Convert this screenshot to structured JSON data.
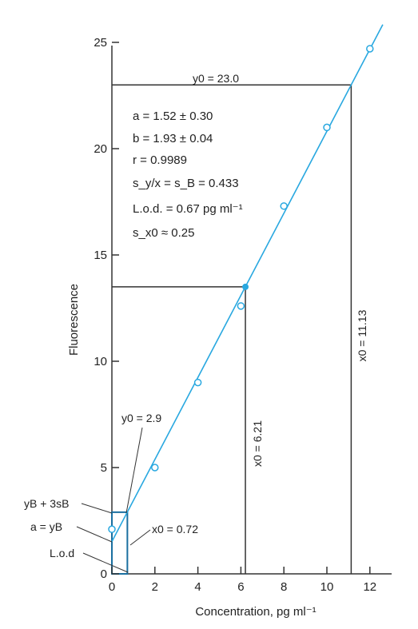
{
  "chart_data": {
    "type": "scatter",
    "xlabel": "Concentration, pg ml⁻¹",
    "ylabel": "Fluorescence",
    "xlim": [
      0,
      13
    ],
    "ylim": [
      0,
      25
    ],
    "x_ticks": [
      "0",
      "2",
      "4",
      "6",
      "8",
      "10",
      "12"
    ],
    "y_ticks": [
      "0",
      "5",
      "10",
      "15",
      "20",
      "25"
    ],
    "series": [
      {
        "x": [
          0,
          2,
          4,
          6,
          8,
          10,
          12
        ],
        "y": [
          2.1,
          5.0,
          9.0,
          12.6,
          17.3,
          21.0,
          24.7
        ]
      }
    ],
    "fit_line": {
      "intercept": 1.52,
      "slope": 1.93
    },
    "colors": {
      "line": "#29a8e0",
      "marker": "#29a8e0",
      "guides": "#333333",
      "lod_box": "#1a6fa0"
    },
    "stats": [
      "a = 1.52 ± 0.30",
      "b = 1.93 ± 0.04",
      "r = 0.9989",
      "s_y/x = s_B = 0.433",
      "L.o.d. = 0.67 pg ml⁻¹",
      "s_x0 ≈ 0.25"
    ],
    "annotations": {
      "y0_top": "y0 = 23.0",
      "x0_large": "x0 = 11.13",
      "x0_mid": "x0 = 6.21",
      "y0_low": "y0 = 2.9",
      "x0_low": "x0 = 0.72",
      "yb3sb": "yB + 3sB",
      "a_yb": "a = yB",
      "lod": "L.o.d"
    },
    "guides": {
      "top": {
        "x": 11.13,
        "y": 23.0
      },
      "mid": {
        "x": 6.21,
        "y": 13.5
      },
      "low": {
        "x": 0.72,
        "y": 2.9
      }
    }
  }
}
